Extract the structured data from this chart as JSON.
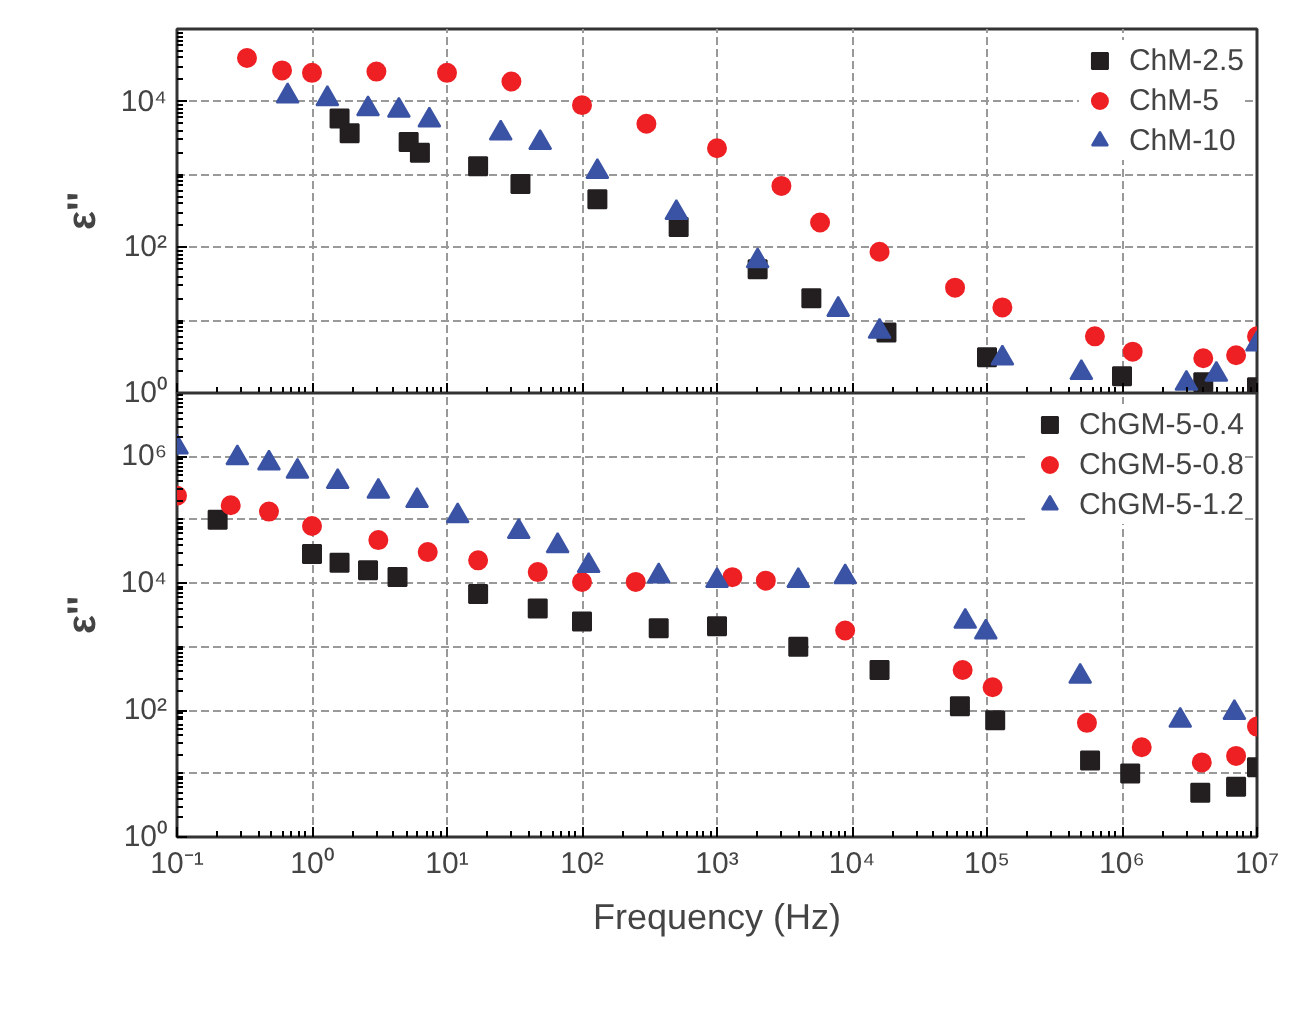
{
  "chart_data": [
    {
      "type": "scatter",
      "ylabel": "ε''",
      "log": "xy",
      "grid": true,
      "legend": "top right",
      "tick_labels": "y",
      "xlim": [
        0.1,
        10000000
      ],
      "ylim": [
        1,
        100000
      ],
      "xticks": [
        {
          "value": 0.1,
          "label": null
        },
        {
          "value": 1,
          "label": null
        },
        {
          "value": 10,
          "label": null
        },
        {
          "value": 100,
          "label": null
        },
        {
          "value": 1000,
          "label": null
        },
        {
          "value": 10000,
          "label": null
        },
        {
          "value": 100000,
          "label": null
        },
        {
          "value": 1000000,
          "label": null
        },
        {
          "value": 10000000,
          "label": null
        }
      ],
      "yticks": [
        {
          "value": 1,
          "label": "10⁰"
        },
        {
          "value": 100,
          "label": "10²"
        },
        {
          "value": 10000,
          "label": "10⁴"
        }
      ],
      "series": [
        {
          "name": "ChM-2.5",
          "color": "#231f20",
          "marker": "square",
          "x": [
            1.6,
            1.9,
            5.2,
            6.3,
            17,
            35,
            130,
            520,
            2000,
            5000,
            18000,
            100000,
            1000000,
            4000000,
            10000000
          ],
          "values": [
            5900,
            3700,
            2800,
            2000,
            1300,
            740,
            460,
            190,
            50,
            20,
            6.8,
            3.1,
            1.7,
            1.4,
            1.2
          ]
        },
        {
          "name": "ChM-5",
          "color": "#ee2024",
          "marker": "circle",
          "x": [
            0.33,
            0.6,
            1,
            3,
            10,
            30,
            100,
            300,
            1000,
            3000,
            5800,
            16000,
            58000,
            130000,
            630000,
            1200000,
            4000000,
            7000000,
            10000000
          ],
          "values": [
            40000,
            27000,
            25000,
            26000,
            25000,
            19000,
            9000,
            5000,
            2300,
            700,
            220,
            87,
            28,
            15,
            6,
            3.7,
            3,
            3.3,
            6
          ]
        },
        {
          "name": "ChM-10",
          "color": "#3a53a4",
          "marker": "triangle",
          "x": [
            0.66,
            1.3,
            2.6,
            4.4,
            7.4,
            25,
            49,
            130,
            500,
            2000,
            7900,
            16000,
            130000,
            500000,
            3000000,
            5000000,
            10000000
          ],
          "values": [
            12000,
            11000,
            8000,
            7600,
            5600,
            3700,
            2750,
            1100,
            300,
            65,
            14,
            7,
            3,
            1.9,
            1.35,
            1.8,
            4.7
          ]
        }
      ]
    },
    {
      "type": "scatter",
      "ylabel": "ε''",
      "xlabel": "Frequency (Hz)",
      "log": "xy",
      "grid": true,
      "legend": "top right",
      "xlim": [
        0.1,
        10000000
      ],
      "ylim": [
        1,
        10000000
      ],
      "xticks": [
        {
          "value": 0.1,
          "label": "10⁻¹"
        },
        {
          "value": 1,
          "label": "10⁰"
        },
        {
          "value": 10,
          "label": "10¹"
        },
        {
          "value": 100,
          "label": "10²"
        },
        {
          "value": 1000,
          "label": "10³"
        },
        {
          "value": 10000,
          "label": "10⁴"
        },
        {
          "value": 100000,
          "label": "10⁵"
        },
        {
          "value": 1000000,
          "label": "10⁶"
        },
        {
          "value": 10000000,
          "label": "10⁷"
        }
      ],
      "yticks": [
        {
          "value": 1,
          "label": "10⁰"
        },
        {
          "value": 100,
          "label": "10²"
        },
        {
          "value": 10000,
          "label": "10⁴"
        },
        {
          "value": 1000000,
          "label": "10⁶"
        }
      ],
      "series": [
        {
          "name": "ChGM-5-0.4",
          "color": "#231f20",
          "marker": "square",
          "x": [
            0.2,
            1,
            1.6,
            2.6,
            4.3,
            17,
            47,
            100,
            370,
            1000,
            4000,
            16000,
            63000,
            115000,
            580000,
            1150000,
            3800000,
            7000000,
            10000000
          ],
          "values": [
            100000,
            29000,
            21000,
            16000,
            12600,
            6800,
            4000,
            2500,
            1950,
            2100,
            1000,
            430,
            115,
            69,
            16,
            10,
            5,
            6.2,
            12.6
          ]
        },
        {
          "name": "ChGM-5-0.8",
          "color": "#ee2024",
          "marker": "circle",
          "x": [
            0.1,
            0.25,
            0.48,
            1,
            3.1,
            7.2,
            17,
            47,
            100,
            250,
            1300,
            2300,
            8900,
            66000,
            110000,
            550000,
            1400000,
            3900000,
            7000000,
            10000000
          ],
          "values": [
            240000,
            170000,
            135000,
            80000,
            48000,
            31000,
            23000,
            15000,
            10500,
            10500,
            12500,
            11000,
            1800,
            430,
            230,
            63,
            26,
            15,
            19,
            55
          ]
        },
        {
          "name": "ChGM-5-1.2",
          "color": "#3a53a4",
          "marker": "triangle",
          "x": [
            0.1,
            0.28,
            0.48,
            0.78,
            1.55,
            3.1,
            6,
            12,
            34,
            66,
            112,
            370,
            1000,
            4000,
            8900,
            69000,
            98000,
            490000,
            2700000,
            6800000
          ],
          "values": [
            1400000,
            950000,
            780000,
            580000,
            400000,
            280000,
            200000,
            115000,
            65000,
            39000,
            19000,
            13000,
            11000,
            11000,
            12600,
            2500,
            1700,
            340,
            69,
            91
          ]
        }
      ]
    }
  ]
}
